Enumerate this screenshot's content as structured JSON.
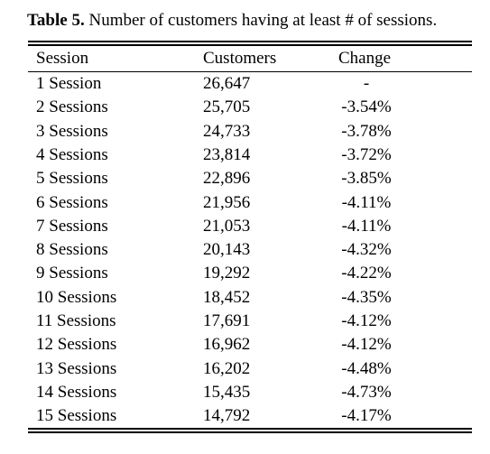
{
  "caption": {
    "label": "Table 5.",
    "text": "Number of customers having at least # of sessions."
  },
  "table": {
    "headers": [
      "Session",
      "Customers",
      "Change"
    ],
    "rows": [
      [
        "1 Session",
        "26,647",
        "-"
      ],
      [
        "2 Sessions",
        "25,705",
        "-3.54%"
      ],
      [
        "3 Sessions",
        "24,733",
        "-3.78%"
      ],
      [
        "4 Sessions",
        "23,814",
        "-3.72%"
      ],
      [
        "5 Sessions",
        "22,896",
        "-3.85%"
      ],
      [
        "6 Sessions",
        "21,956",
        "-4.11%"
      ],
      [
        "7 Sessions",
        "21,053",
        "-4.11%"
      ],
      [
        "8 Sessions",
        "20,143",
        "-4.32%"
      ],
      [
        "9 Sessions",
        "19,292",
        "-4.22%"
      ],
      [
        "10 Sessions",
        "18,452",
        "-4.35%"
      ],
      [
        "11 Sessions",
        "17,691",
        "-4.12%"
      ],
      [
        "12 Sessions",
        "16,962",
        "-4.12%"
      ],
      [
        "13 Sessions",
        "16,202",
        "-4.48%"
      ],
      [
        "14 Sessions",
        "15,435",
        "-4.73%"
      ],
      [
        "15 Sessions",
        "14,792",
        "-4.17%"
      ]
    ]
  }
}
